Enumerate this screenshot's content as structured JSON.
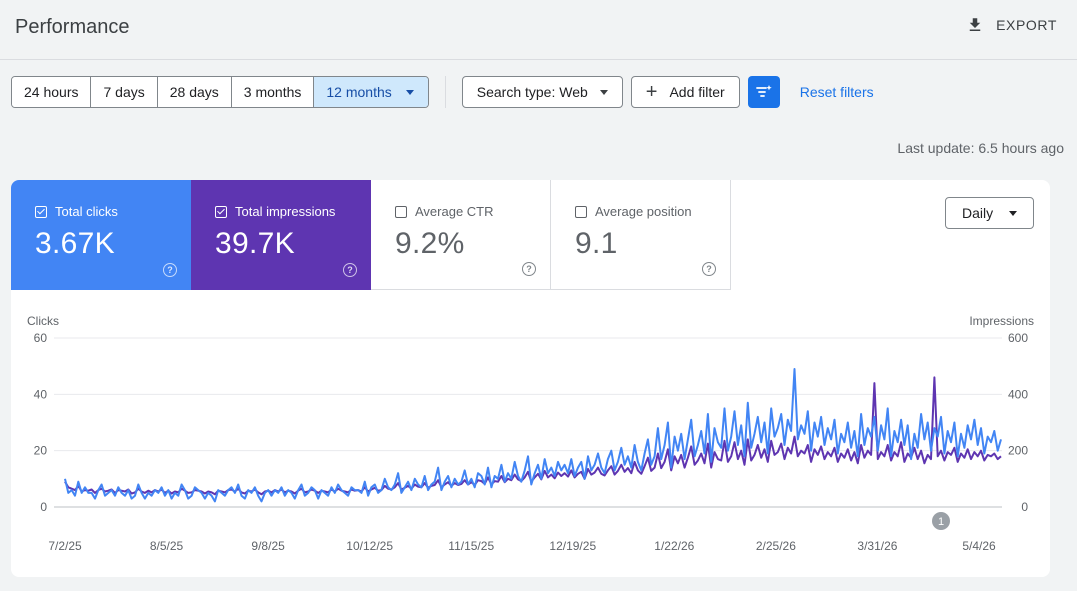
{
  "header": {
    "title": "Performance",
    "export_label": "EXPORT"
  },
  "filters": {
    "ranges": [
      "24 hours",
      "7 days",
      "28 days",
      "3 months"
    ],
    "active_range": "12 months",
    "search_type": "Search type: Web",
    "add_filter": "Add filter",
    "reset": "Reset filters"
  },
  "last_update": "Last update: 6.5 hours ago",
  "metrics": {
    "clicks": {
      "label": "Total clicks",
      "value": "3.67K",
      "checked": true
    },
    "impressions": {
      "label": "Total impressions",
      "value": "39.7K",
      "checked": true
    },
    "ctr": {
      "label": "Average CTR",
      "value": "9.2%",
      "checked": false
    },
    "position": {
      "label": "Average position",
      "value": "9.1",
      "checked": false
    }
  },
  "granularity": "Daily",
  "colors": {
    "clicks": "#4285f4",
    "impressions": "#5e35b1",
    "accent": "#1a73e8"
  },
  "chart_data": {
    "type": "line",
    "left_axis_title": "Clicks",
    "right_axis_title": "Impressions",
    "left_ticks": [
      "60",
      "40",
      "20",
      "0"
    ],
    "right_ticks": [
      "600",
      "400",
      "200",
      "0"
    ],
    "y_left_lim": [
      0,
      60
    ],
    "y_right_lim": [
      0,
      600
    ],
    "x_tick_labels": [
      "7/2/25",
      "8/5/25",
      "9/8/25",
      "10/12/25",
      "11/15/25",
      "12/19/25",
      "1/22/26",
      "2/25/26",
      "3/31/26",
      "5/4/26"
    ],
    "annotation": "1",
    "series": [
      {
        "name": "Clicks",
        "axis": "left",
        "color": "#4285f4",
        "values": [
          10,
          5,
          6,
          4,
          9,
          5,
          7,
          5,
          5,
          3,
          6,
          8,
          4,
          5,
          6,
          4,
          7,
          5,
          4,
          6,
          3,
          4,
          8,
          5,
          3,
          5,
          4,
          6,
          5,
          7,
          4,
          6,
          3,
          5,
          4,
          8,
          6,
          3,
          4,
          7,
          6,
          5,
          3,
          5,
          4,
          2,
          6,
          5,
          4,
          6,
          7,
          5,
          8,
          4,
          3,
          6,
          5,
          7,
          4,
          2,
          5,
          6,
          4,
          6,
          5,
          7,
          4,
          6,
          5,
          3,
          6,
          8,
          4,
          5,
          7,
          6,
          3,
          6,
          5,
          4,
          7,
          5,
          8,
          6,
          5,
          4,
          7,
          6,
          6,
          5,
          9,
          4,
          7,
          8,
          5,
          6,
          10,
          7,
          6,
          8,
          12,
          5,
          7,
          9,
          6,
          10,
          8,
          7,
          11,
          6,
          8,
          9,
          14,
          6,
          9,
          11,
          7,
          10,
          8,
          9,
          13,
          8,
          10,
          7,
          12,
          11,
          8,
          14,
          7,
          11,
          10,
          15,
          9,
          12,
          10,
          16,
          11,
          9,
          13,
          18,
          8,
          12,
          15,
          10,
          17,
          12,
          14,
          11,
          16,
          13,
          15,
          12,
          17,
          11,
          14,
          16,
          10,
          18,
          13,
          15,
          19,
          14,
          12,
          17,
          20,
          13,
          16,
          21,
          15,
          18,
          14,
          22,
          16,
          13,
          19,
          24,
          15,
          18,
          28,
          17,
          22,
          30,
          14,
          25,
          20,
          26,
          17,
          24,
          31,
          18,
          22,
          27,
          19,
          33,
          16,
          28,
          23,
          21,
          35,
          20,
          25,
          34,
          22,
          29,
          18,
          37,
          21,
          26,
          32,
          23,
          30,
          19,
          35,
          25,
          28,
          33,
          22,
          31,
          27,
          49,
          24,
          29,
          26,
          34,
          20,
          30,
          25,
          32,
          22,
          28,
          24,
          31,
          19,
          26,
          23,
          30,
          21,
          27,
          18,
          33,
          22,
          28,
          25,
          32,
          20,
          29,
          24,
          35,
          18,
          27,
          23,
          31,
          22,
          29,
          17,
          26,
          21,
          33,
          24,
          30,
          20,
          28,
          25,
          32,
          19,
          27,
          23,
          30,
          18,
          26,
          21,
          29,
          24,
          31,
          22,
          28,
          19,
          25,
          23,
          27,
          20,
          24
        ]
      },
      {
        "name": "Impressions",
        "axis": "right",
        "color": "#5e35b1",
        "values": [
          90,
          70,
          65,
          60,
          75,
          55,
          60,
          58,
          62,
          50,
          60,
          65,
          55,
          58,
          62,
          50,
          60,
          58,
          55,
          62,
          48,
          52,
          65,
          55,
          50,
          58,
          52,
          60,
          55,
          62,
          50,
          58,
          48,
          55,
          52,
          65,
          58,
          50,
          52,
          60,
          58,
          55,
          48,
          55,
          52,
          45,
          58,
          55,
          52,
          60,
          62,
          55,
          65,
          52,
          48,
          58,
          55,
          62,
          52,
          45,
          55,
          58,
          52,
          60,
          55,
          62,
          52,
          58,
          55,
          48,
          58,
          65,
          52,
          55,
          62,
          58,
          50,
          58,
          55,
          52,
          62,
          55,
          65,
          58,
          55,
          52,
          62,
          58,
          60,
          55,
          70,
          55,
          62,
          68,
          58,
          60,
          75,
          65,
          62,
          70,
          85,
          62,
          68,
          75,
          65,
          80,
          72,
          70,
          85,
          68,
          75,
          78,
          95,
          70,
          80,
          88,
          75,
          85,
          78,
          82,
          95,
          80,
          88,
          78,
          95,
          92,
          82,
          105,
          80,
          92,
          90,
          110,
          88,
          100,
          95,
          115,
          98,
          92,
          105,
          125,
          90,
          105,
          118,
          98,
          128,
          105,
          115,
          102,
          122,
          110,
          120,
          108,
          130,
          105,
          118,
          125,
          100,
          135,
          115,
          122,
          140,
          118,
          112,
          130,
          145,
          115,
          128,
          150,
          125,
          138,
          120,
          160,
          130,
          118,
          145,
          175,
          128,
          140,
          190,
          138,
          160,
          205,
          130,
          180,
          155,
          185,
          140,
          175,
          215,
          150,
          165,
          190,
          155,
          225,
          140,
          195,
          170,
          165,
          235,
          160,
          180,
          230,
          170,
          200,
          150,
          240,
          165,
          185,
          220,
          175,
          205,
          160,
          235,
          185,
          195,
          225,
          170,
          210,
          190,
          250,
          180,
          200,
          190,
          220,
          160,
          205,
          185,
          215,
          170,
          195,
          180,
          210,
          160,
          190,
          175,
          205,
          165,
          195,
          155,
          220,
          175,
          200,
          185,
          440,
          170,
          195,
          180,
          220,
          165,
          195,
          180,
          230,
          160,
          190,
          175,
          210,
          170,
          200,
          155,
          185,
          170,
          460,
          180,
          200,
          165,
          195,
          185,
          210,
          160,
          190,
          175,
          205,
          170,
          195,
          180,
          200,
          165,
          185,
          180,
          190,
          170,
          180
        ]
      }
    ]
  }
}
